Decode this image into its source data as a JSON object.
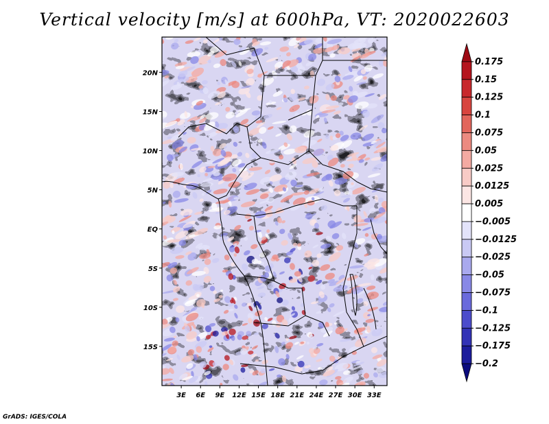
{
  "title": "Vertical velocity [m/s] at 600hPa, VT: 2020022603",
  "credit": "GrADS: IGES/COLA",
  "chart_data": {
    "type": "heatmap",
    "title": "Vertical velocity [m/s] at 600hPa, VT: 2020022603",
    "variable": "Vertical velocity",
    "units": "m/s",
    "level": "600hPa",
    "valid_time": "2020022603",
    "x_ticks": [
      "3E",
      "6E",
      "9E",
      "12E",
      "15E",
      "18E",
      "21E",
      "24E",
      "27E",
      "30E",
      "33E"
    ],
    "x_tick_values": [
      3,
      6,
      9,
      12,
      15,
      18,
      21,
      24,
      27,
      30,
      33
    ],
    "y_ticks": [
      "20N",
      "15N",
      "10N",
      "5N",
      "EQ",
      "5S",
      "10S",
      "15S"
    ],
    "y_tick_values": [
      20,
      15,
      10,
      5,
      0,
      -5,
      -10,
      -15
    ],
    "xlim": [
      0,
      35
    ],
    "ylim": [
      -20,
      24.5
    ],
    "colorbar": {
      "labels": [
        "0.175",
        "0.15",
        "0.125",
        "0.1",
        "0.075",
        "0.05",
        "0.025",
        "0.0125",
        "0.005",
        "−0.005",
        "−0.0125",
        "−0.025",
        "−0.05",
        "−0.075",
        "−0.1",
        "−0.125",
        "−0.175",
        "−0.2"
      ],
      "colors": [
        "#9e0a14",
        "#b5141e",
        "#c8282c",
        "#d8453f",
        "#e2665c",
        "#ec8a80",
        "#f4aaa2",
        "#f8cbc6",
        "#fce6e4",
        "#ffffff",
        "#e3e3fa",
        "#c9c9f4",
        "#a9a9ee",
        "#8888e6",
        "#6a6adc",
        "#4c4ccc",
        "#3232b6",
        "#1c1c9c",
        "#0c0c7e"
      ]
    }
  }
}
